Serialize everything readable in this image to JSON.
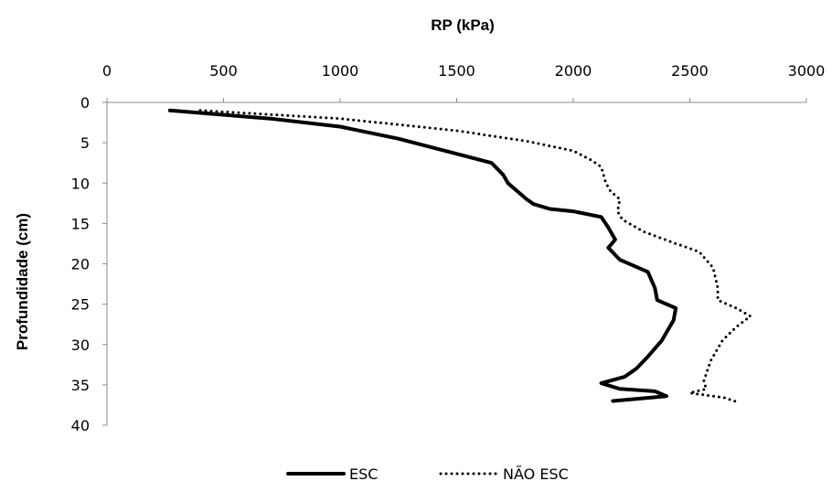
{
  "chart_data": {
    "type": "line",
    "title": "RP (kPa)",
    "xlabel": "RP (kPa)",
    "ylabel": "Profundidade (cm)",
    "xlim": [
      0,
      3000
    ],
    "ylim": [
      0,
      40
    ],
    "x_axis_position": "top",
    "y_axis_inverted": true,
    "grid": false,
    "legend_position": "bottom",
    "x_ticks": [
      "0",
      "500",
      "1000",
      "1500",
      "2000",
      "2500",
      "3000"
    ],
    "y_ticks": [
      "0",
      "5",
      "10",
      "15",
      "20",
      "25",
      "30",
      "35",
      "40"
    ],
    "series": [
      {
        "name": "ESC",
        "style": "solid",
        "color": "#000000",
        "points": [
          [
            270,
            1
          ],
          [
            700,
            2
          ],
          [
            1000,
            3
          ],
          [
            1250,
            4.5
          ],
          [
            1450,
            6
          ],
          [
            1650,
            7.5
          ],
          [
            1700,
            9
          ],
          [
            1720,
            10
          ],
          [
            1760,
            11
          ],
          [
            1800,
            12
          ],
          [
            1830,
            12.6
          ],
          [
            1900,
            13.2
          ],
          [
            2000,
            13.5
          ],
          [
            2120,
            14.2
          ],
          [
            2150,
            15.5
          ],
          [
            2180,
            17
          ],
          [
            2150,
            18
          ],
          [
            2200,
            19.5
          ],
          [
            2320,
            21
          ],
          [
            2350,
            23
          ],
          [
            2360,
            24.5
          ],
          [
            2440,
            25.5
          ],
          [
            2430,
            27
          ],
          [
            2410,
            28
          ],
          [
            2380,
            29.5
          ],
          [
            2320,
            31.5
          ],
          [
            2270,
            33
          ],
          [
            2220,
            34
          ],
          [
            2120,
            34.8
          ],
          [
            2200,
            35.5
          ],
          [
            2350,
            35.8
          ],
          [
            2400,
            36.4
          ],
          [
            2170,
            37
          ]
        ]
      },
      {
        "name": "NÃO ESC",
        "style": "dotted",
        "color": "#000000",
        "points": [
          [
            400,
            1
          ],
          [
            1000,
            2
          ],
          [
            1500,
            3.5
          ],
          [
            1800,
            4.8
          ],
          [
            2000,
            6
          ],
          [
            2080,
            7.2
          ],
          [
            2120,
            8
          ],
          [
            2140,
            10
          ],
          [
            2160,
            11
          ],
          [
            2200,
            12
          ],
          [
            2190,
            13.5
          ],
          [
            2210,
            14.5
          ],
          [
            2300,
            16
          ],
          [
            2440,
            17.5
          ],
          [
            2540,
            18.5
          ],
          [
            2600,
            20.5
          ],
          [
            2620,
            23
          ],
          [
            2620,
            24.5
          ],
          [
            2700,
            25.5
          ],
          [
            2760,
            26.5
          ],
          [
            2700,
            27.8
          ],
          [
            2640,
            29.5
          ],
          [
            2590,
            32
          ],
          [
            2560,
            34.5
          ],
          [
            2570,
            35.5
          ],
          [
            2500,
            36
          ],
          [
            2650,
            36.6
          ],
          [
            2710,
            37.2
          ]
        ]
      }
    ]
  }
}
